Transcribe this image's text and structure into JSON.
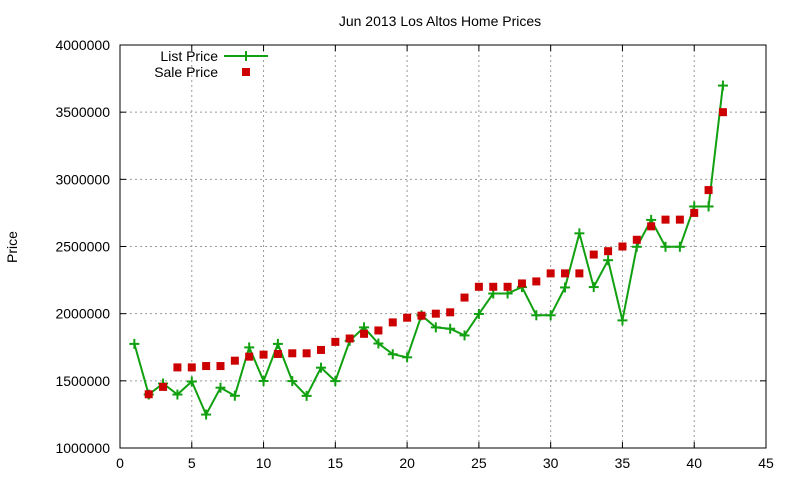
{
  "chart_data": {
    "type": "line",
    "title": "Jun 2013 Los Altos Home Prices",
    "xlabel": "",
    "ylabel": "Price",
    "xlim": [
      0,
      45
    ],
    "ylim": [
      1000000,
      4000000
    ],
    "xticks": [
      0,
      5,
      10,
      15,
      20,
      25,
      30,
      35,
      40,
      45
    ],
    "yticks": [
      1000000,
      1500000,
      2000000,
      2500000,
      3000000,
      3500000,
      4000000
    ],
    "grid": true,
    "legend_position": "top-left",
    "series": [
      {
        "name": "List Price",
        "style": "line-with-plus-markers",
        "color": "#10a010",
        "points": [
          [
            1,
            1775000
          ],
          [
            2,
            1398000
          ],
          [
            3,
            1480000
          ],
          [
            4,
            1398000
          ],
          [
            5,
            1495000
          ],
          [
            6,
            1249000
          ],
          [
            7,
            1449000
          ],
          [
            8,
            1389000
          ],
          [
            9,
            1749000
          ],
          [
            10,
            1499000
          ],
          [
            11,
            1775000
          ],
          [
            12,
            1498000
          ],
          [
            13,
            1388000
          ],
          [
            14,
            1598000
          ],
          [
            15,
            1498000
          ],
          [
            16,
            1798000
          ],
          [
            17,
            1898000
          ],
          [
            18,
            1778000
          ],
          [
            19,
            1698000
          ],
          [
            20,
            1675000
          ],
          [
            21,
            1988000
          ],
          [
            22,
            1898000
          ],
          [
            23,
            1888000
          ],
          [
            24,
            1838000
          ],
          [
            25,
            1998000
          ],
          [
            26,
            2150000
          ],
          [
            27,
            2150000
          ],
          [
            28,
            2198000
          ],
          [
            29,
            1988000
          ],
          [
            30,
            1988000
          ],
          [
            31,
            2195000
          ],
          [
            32,
            2598000
          ],
          [
            33,
            2198000
          ],
          [
            34,
            2398000
          ],
          [
            35,
            1950000
          ],
          [
            36,
            2498000
          ],
          [
            37,
            2698000
          ],
          [
            38,
            2498000
          ],
          [
            39,
            2498000
          ],
          [
            40,
            2798000
          ],
          [
            41,
            2798000
          ],
          [
            42,
            3698000
          ]
        ]
      },
      {
        "name": "Sale Price",
        "style": "square-markers",
        "color": "#cc0000",
        "points": [
          [
            2,
            1400000
          ],
          [
            3,
            1455000
          ],
          [
            4,
            1600000
          ],
          [
            5,
            1600000
          ],
          [
            6,
            1610000
          ],
          [
            7,
            1610000
          ],
          [
            8,
            1650000
          ],
          [
            9,
            1680000
          ],
          [
            10,
            1695000
          ],
          [
            11,
            1700000
          ],
          [
            12,
            1705000
          ],
          [
            13,
            1705000
          ],
          [
            14,
            1730000
          ],
          [
            15,
            1790000
          ],
          [
            16,
            1815000
          ],
          [
            17,
            1850000
          ],
          [
            18,
            1875000
          ],
          [
            19,
            1935000
          ],
          [
            20,
            1970000
          ],
          [
            21,
            1985000
          ],
          [
            22,
            2000000
          ],
          [
            23,
            2010000
          ],
          [
            24,
            2120000
          ],
          [
            25,
            2200000
          ],
          [
            26,
            2200000
          ],
          [
            27,
            2200000
          ],
          [
            28,
            2225000
          ],
          [
            29,
            2240000
          ],
          [
            30,
            2300000
          ],
          [
            31,
            2300000
          ],
          [
            32,
            2300000
          ],
          [
            33,
            2440000
          ],
          [
            34,
            2465000
          ],
          [
            35,
            2500000
          ],
          [
            36,
            2550000
          ],
          [
            37,
            2650000
          ],
          [
            38,
            2700000
          ],
          [
            39,
            2700000
          ],
          [
            40,
            2750000
          ],
          [
            41,
            2920000
          ],
          [
            42,
            3500000
          ]
        ]
      }
    ]
  }
}
